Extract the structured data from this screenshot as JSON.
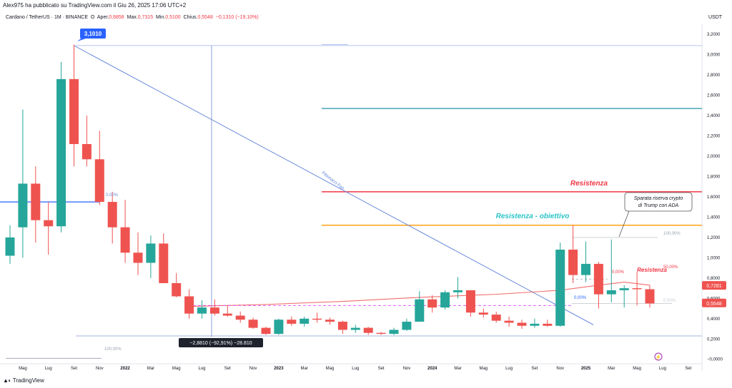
{
  "header": {
    "publisher_line": "Alex975 ha pubblicato su TradingView.com il Giu 26, 2025 17:06 UTC+2"
  },
  "symbol_bar": {
    "name": "Cardano / TetherUS · 1M · BINANCE",
    "open": "O",
    "open_label": "Aper.",
    "open_val": "0,6858",
    "high_label": "Max.",
    "high_val": "0,7315",
    "low_label": "Min.",
    "low_val": "0,5100",
    "close_label": "Chius.",
    "close_val": "0,5548",
    "change": "−0,1310 (−19,10%)"
  },
  "footer": {
    "brand": "TradingView"
  },
  "colors": {
    "up": "#26a69a",
    "down": "#ef5350",
    "resist_red": "#f23645",
    "resist_orange": "#ff9800",
    "teal_line": "#2196a8",
    "fib_blue": "#5b7fd9",
    "ma_red": "#ef5350",
    "text_cyan": "#2bc4c8"
  },
  "chart_data": {
    "type": "candlestick",
    "title": "Cardano / TetherUS · 1M · BINANCE",
    "unit": "USDT",
    "ylim": [
      -0.03,
      3.3
    ],
    "y_ticks": [
      "3,2000",
      "3,0000",
      "2,8000",
      "2,6000",
      "2,4000",
      "2,2000",
      "2,0000",
      "1,8000",
      "1,6000",
      "1,4000",
      "1,2000",
      "1,0000",
      "0,8000",
      "0,6000",
      "0,4000",
      "0,2000",
      "−0,0000"
    ],
    "x_ticks": [
      {
        "label": "Mag",
        "idx": 1,
        "bold": false
      },
      {
        "label": "Lug",
        "idx": 3,
        "bold": false
      },
      {
        "label": "Set",
        "idx": 5,
        "bold": false
      },
      {
        "label": "Nov",
        "idx": 7,
        "bold": false
      },
      {
        "label": "2022",
        "idx": 9,
        "bold": true
      },
      {
        "label": "Mar",
        "idx": 11,
        "bold": false
      },
      {
        "label": "Mag",
        "idx": 13,
        "bold": false
      },
      {
        "label": "Lug",
        "idx": 15,
        "bold": false
      },
      {
        "label": "Set",
        "idx": 17,
        "bold": false
      },
      {
        "label": "Nov",
        "idx": 19,
        "bold": false
      },
      {
        "label": "2023",
        "idx": 21,
        "bold": true
      },
      {
        "label": "Mar",
        "idx": 23,
        "bold": false
      },
      {
        "label": "Mag",
        "idx": 25,
        "bold": false
      },
      {
        "label": "Lug",
        "idx": 27,
        "bold": false
      },
      {
        "label": "Set",
        "idx": 29,
        "bold": false
      },
      {
        "label": "Nov",
        "idx": 31,
        "bold": false
      },
      {
        "label": "2024",
        "idx": 33,
        "bold": true
      },
      {
        "label": "Mar",
        "idx": 35,
        "bold": false
      },
      {
        "label": "Mag",
        "idx": 37,
        "bold": false
      },
      {
        "label": "Lug",
        "idx": 39,
        "bold": false
      },
      {
        "label": "Set",
        "idx": 41,
        "bold": false
      },
      {
        "label": "Nov",
        "idx": 43,
        "bold": false
      },
      {
        "label": "2025",
        "idx": 45,
        "bold": true
      },
      {
        "label": "Mar",
        "idx": 47,
        "bold": false
      },
      {
        "label": "Mag",
        "idx": 49,
        "bold": false
      },
      {
        "label": "Lug",
        "idx": 51,
        "bold": false
      },
      {
        "label": "Set",
        "idx": 53,
        "bold": false
      }
    ],
    "candles": [
      {
        "o": 1.02,
        "h": 1.32,
        "l": 0.94,
        "c": 1.2
      },
      {
        "o": 1.3,
        "h": 2.46,
        "l": 1.0,
        "c": 1.73
      },
      {
        "o": 1.73,
        "h": 1.9,
        "l": 1.15,
        "c": 1.37
      },
      {
        "o": 1.37,
        "h": 1.55,
        "l": 1.03,
        "c": 1.31
      },
      {
        "o": 1.31,
        "h": 2.93,
        "l": 1.25,
        "c": 2.76
      },
      {
        "o": 2.76,
        "h": 3.1,
        "l": 1.9,
        "c": 2.12
      },
      {
        "o": 2.12,
        "h": 2.4,
        "l": 1.9,
        "c": 1.97
      },
      {
        "o": 1.97,
        "h": 2.25,
        "l": 1.52,
        "c": 1.55
      },
      {
        "o": 1.55,
        "h": 1.65,
        "l": 1.14,
        "c": 1.3
      },
      {
        "o": 1.3,
        "h": 1.57,
        "l": 0.95,
        "c": 1.05
      },
      {
        "o": 1.05,
        "h": 1.25,
        "l": 0.83,
        "c": 0.95
      },
      {
        "o": 0.95,
        "h": 1.22,
        "l": 0.8,
        "c": 1.14
      },
      {
        "o": 1.14,
        "h": 1.24,
        "l": 0.75,
        "c": 0.75
      },
      {
        "o": 0.75,
        "h": 0.85,
        "l": 0.61,
        "c": 0.62
      },
      {
        "o": 0.62,
        "h": 0.69,
        "l": 0.4,
        "c": 0.45
      },
      {
        "o": 0.45,
        "h": 0.58,
        "l": 0.4,
        "c": 0.51
      },
      {
        "o": 0.51,
        "h": 0.59,
        "l": 0.43,
        "c": 0.45
      },
      {
        "o": 0.45,
        "h": 0.53,
        "l": 0.42,
        "c": 0.43
      },
      {
        "o": 0.43,
        "h": 0.47,
        "l": 0.36,
        "c": 0.39
      },
      {
        "o": 0.39,
        "h": 0.41,
        "l": 0.3,
        "c": 0.31
      },
      {
        "o": 0.31,
        "h": 0.32,
        "l": 0.24,
        "c": 0.25
      },
      {
        "o": 0.25,
        "h": 0.4,
        "l": 0.24,
        "c": 0.39
      },
      {
        "o": 0.39,
        "h": 0.42,
        "l": 0.33,
        "c": 0.35
      },
      {
        "o": 0.35,
        "h": 0.42,
        "l": 0.32,
        "c": 0.4
      },
      {
        "o": 0.4,
        "h": 0.46,
        "l": 0.36,
        "c": 0.39
      },
      {
        "o": 0.39,
        "h": 0.41,
        "l": 0.34,
        "c": 0.37
      },
      {
        "o": 0.37,
        "h": 0.38,
        "l": 0.25,
        "c": 0.29
      },
      {
        "o": 0.29,
        "h": 0.34,
        "l": 0.26,
        "c": 0.31
      },
      {
        "o": 0.31,
        "h": 0.32,
        "l": 0.24,
        "c": 0.26
      },
      {
        "o": 0.26,
        "h": 0.27,
        "l": 0.24,
        "c": 0.25
      },
      {
        "o": 0.25,
        "h": 0.31,
        "l": 0.24,
        "c": 0.29
      },
      {
        "o": 0.29,
        "h": 0.4,
        "l": 0.28,
        "c": 0.37
      },
      {
        "o": 0.37,
        "h": 0.67,
        "l": 0.37,
        "c": 0.59
      },
      {
        "o": 0.59,
        "h": 0.63,
        "l": 0.46,
        "c": 0.51
      },
      {
        "o": 0.51,
        "h": 0.68,
        "l": 0.49,
        "c": 0.66
      },
      {
        "o": 0.66,
        "h": 0.81,
        "l": 0.6,
        "c": 0.68
      },
      {
        "o": 0.68,
        "h": 0.68,
        "l": 0.42,
        "c": 0.46
      },
      {
        "o": 0.46,
        "h": 0.5,
        "l": 0.41,
        "c": 0.44
      },
      {
        "o": 0.44,
        "h": 0.47,
        "l": 0.36,
        "c": 0.38
      },
      {
        "o": 0.38,
        "h": 0.42,
        "l": 0.32,
        "c": 0.36
      },
      {
        "o": 0.36,
        "h": 0.39,
        "l": 0.3,
        "c": 0.33
      },
      {
        "o": 0.33,
        "h": 0.4,
        "l": 0.31,
        "c": 0.35
      },
      {
        "o": 0.35,
        "h": 0.39,
        "l": 0.32,
        "c": 0.33
      },
      {
        "o": 0.33,
        "h": 1.15,
        "l": 0.32,
        "c": 1.08
      },
      {
        "o": 1.08,
        "h": 1.32,
        "l": 0.75,
        "c": 0.83
      },
      {
        "o": 0.83,
        "h": 1.16,
        "l": 0.76,
        "c": 0.94
      },
      {
        "o": 0.94,
        "h": 0.96,
        "l": 0.5,
        "c": 0.64
      },
      {
        "o": 0.64,
        "h": 1.18,
        "l": 0.56,
        "c": 0.68
      },
      {
        "o": 0.68,
        "h": 0.73,
        "l": 0.51,
        "c": 0.7
      },
      {
        "o": 0.7,
        "h": 0.86,
        "l": 0.53,
        "c": 0.69
      },
      {
        "o": 0.69,
        "h": 0.73,
        "l": 0.51,
        "c": 0.55
      }
    ],
    "ma_line": [
      {
        "idx": 14,
        "v": 0.52
      },
      {
        "idx": 20,
        "v": 0.54
      },
      {
        "idx": 26,
        "v": 0.57
      },
      {
        "idx": 32,
        "v": 0.61
      },
      {
        "idx": 38,
        "v": 0.64
      },
      {
        "idx": 43,
        "v": 0.68
      },
      {
        "idx": 46,
        "v": 0.73
      },
      {
        "idx": 48,
        "v": 0.76
      },
      {
        "idx": 50,
        "v": 0.73
      }
    ],
    "horizontal_levels": [
      {
        "name": "Resistenza",
        "value": 1.65,
        "color": "#f23645"
      },
      {
        "name": "Resistenza - obiettivo",
        "value": 1.32,
        "color": "#ff9800"
      },
      {
        "name": "teal",
        "value": 2.47,
        "color": "#2196a8"
      },
      {
        "name": "ath-line",
        "value": 3.09,
        "color": "#5b7fd9"
      },
      {
        "name": "left-blue",
        "value": 1.55,
        "color": "#2962ff"
      }
    ],
    "annotations": {
      "peak_label": "3,1010",
      "fib_fan_label": "Fibonacci Fan",
      "fib_0_left": "0,00%",
      "fib_100_left": "100,00%",
      "measure_label": "−2,8810 (−92,91%) −28.810",
      "resist_text": "Resistenza",
      "target_text": "Resistenza - obiettivo",
      "resist_small": "Resistenza",
      "callout": [
        "Sparata riserva crypto",
        "di Trump con ADA"
      ],
      "fib_right_100": "100,00%",
      "fib_right_50": "50,00%",
      "fib_right_0a": "0,00%",
      "fib_right_0b": "0,00%",
      "fib_right_c": "0,00%",
      "ma_value": "0,7281",
      "last_price": "0,5548"
    }
  }
}
